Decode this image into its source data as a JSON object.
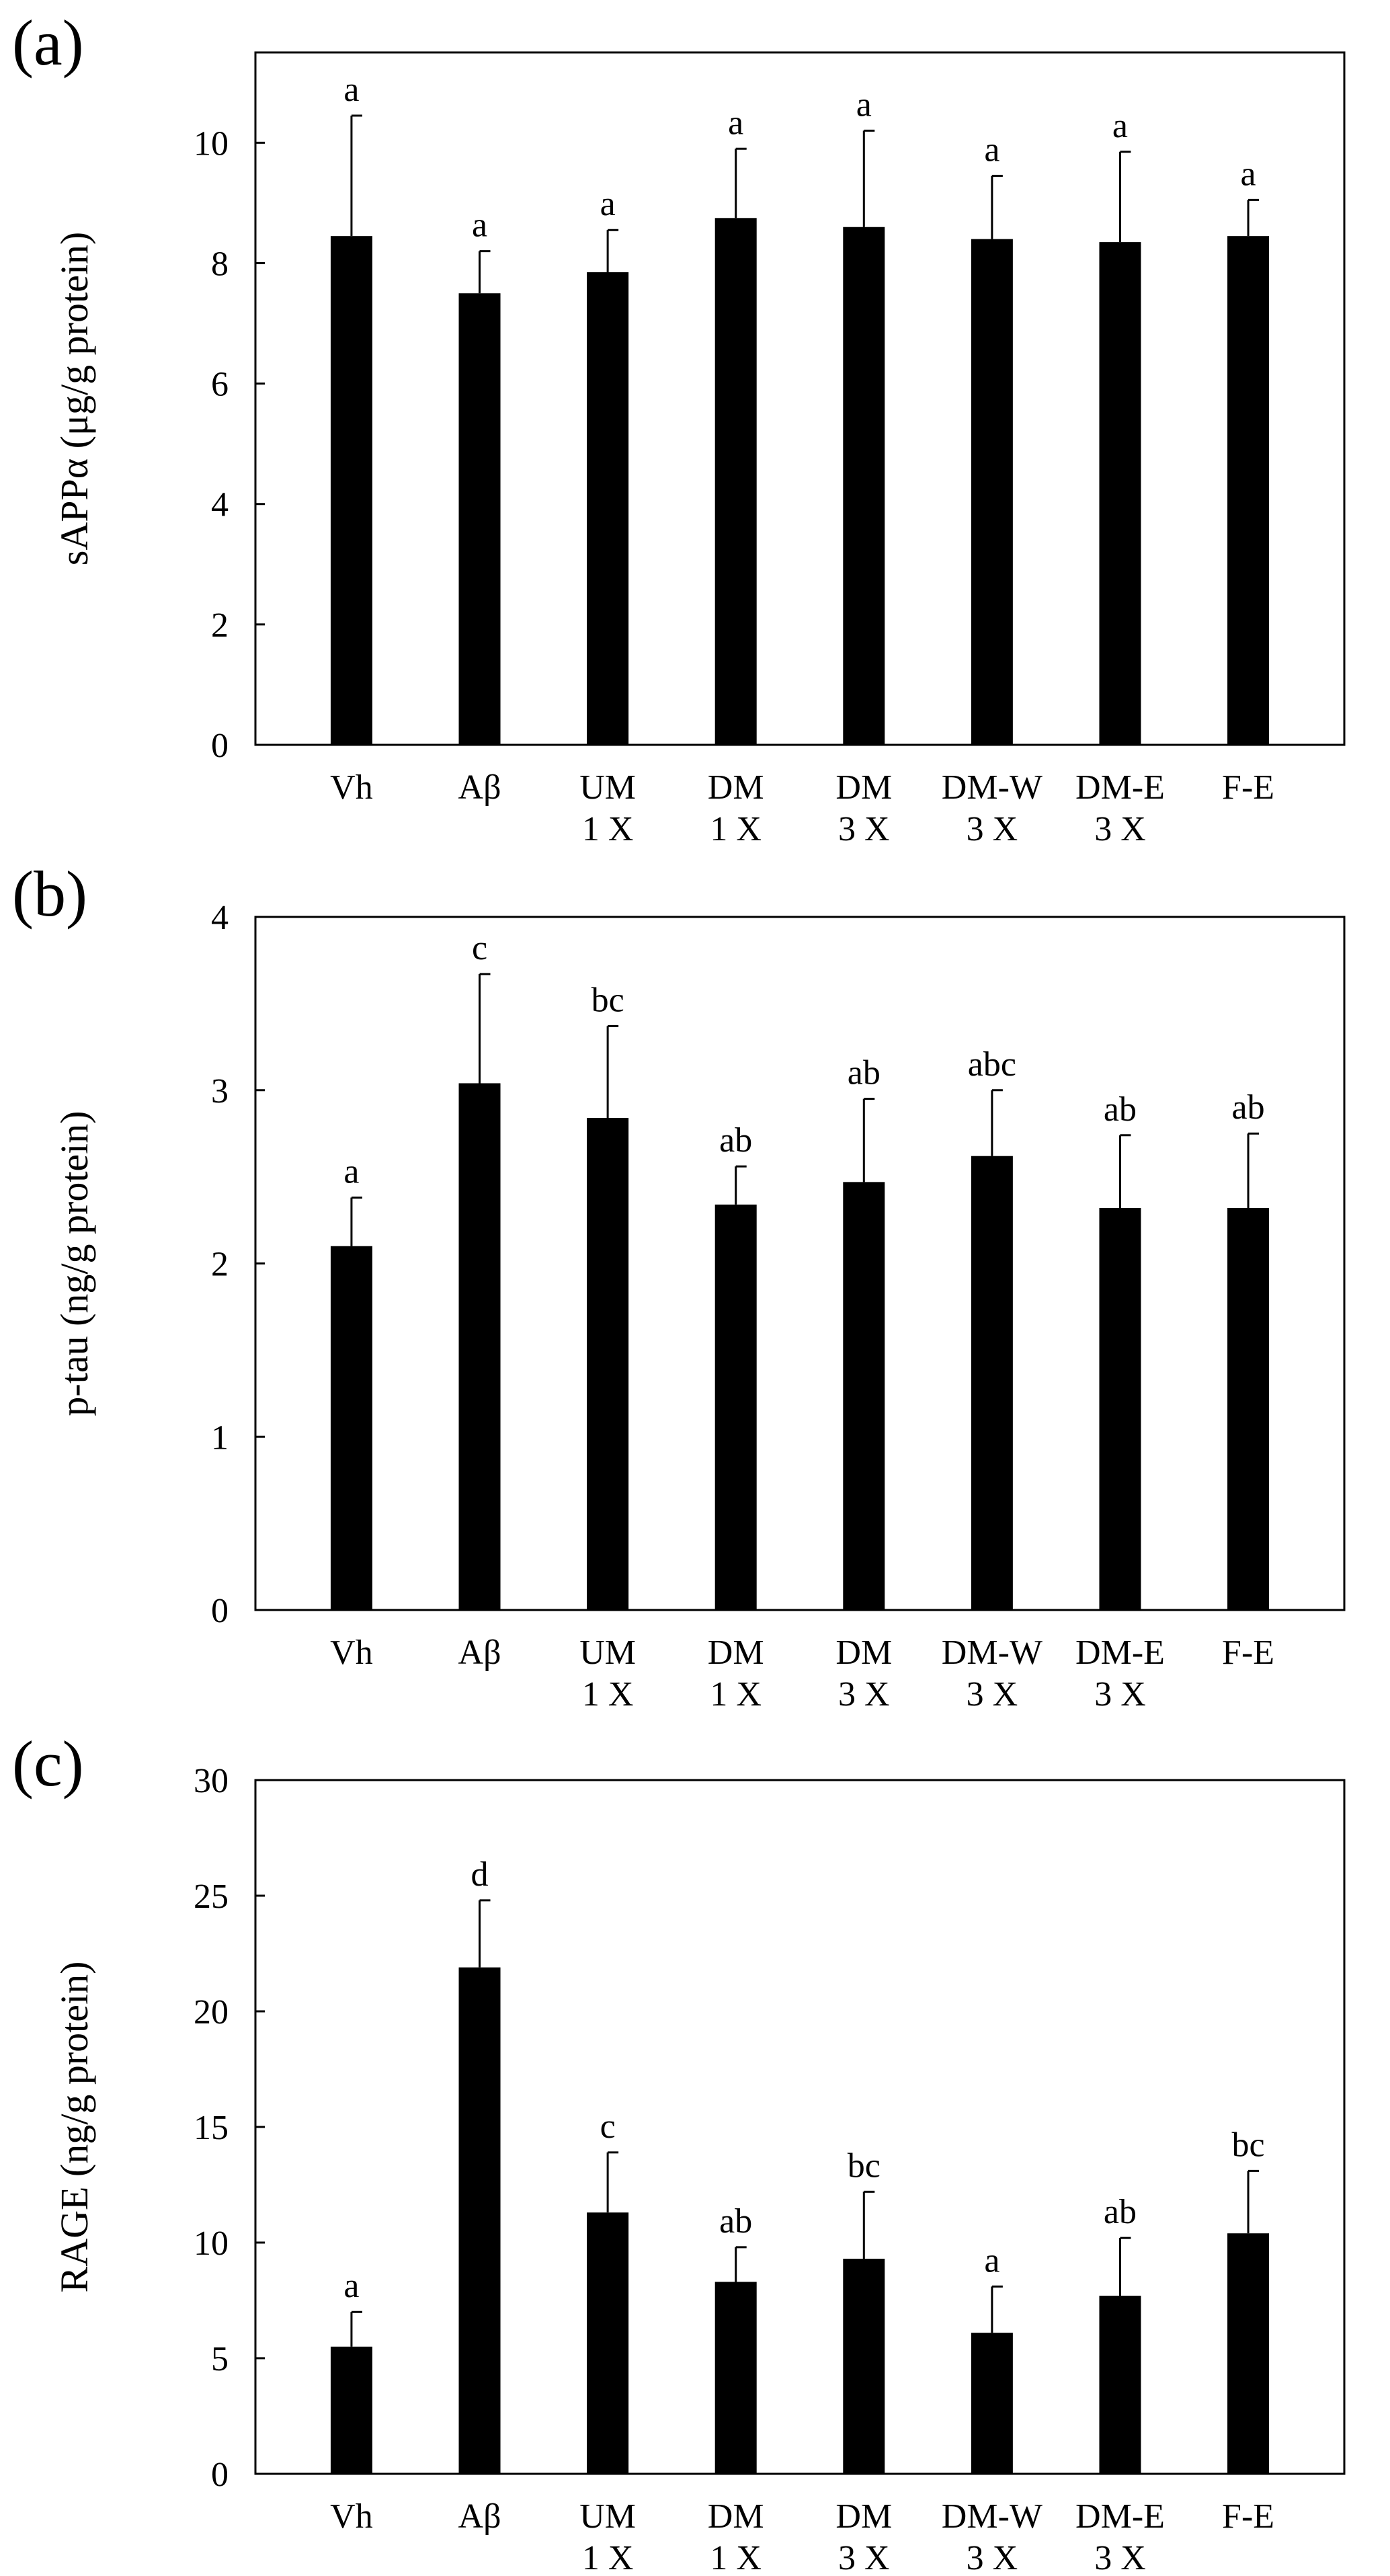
{
  "chart_data": [
    {
      "type": "bar",
      "panel_label": "(a)",
      "ylabel": "sAPPα (μg/g protein)",
      "ylim": [
        0,
        11.5
      ],
      "yticks": [
        0,
        2,
        4,
        6,
        8,
        10
      ],
      "categories": [
        [
          "Vh"
        ],
        [
          "Aβ"
        ],
        [
          "UM",
          "1 X"
        ],
        [
          "DM",
          "1 X"
        ],
        [
          "DM",
          "3 X"
        ],
        [
          "DM-W",
          "3 X"
        ],
        [
          "DM-E",
          "3 X"
        ],
        [
          "F-E"
        ]
      ],
      "values": [
        8.45,
        7.5,
        7.85,
        8.75,
        8.6,
        8.4,
        8.35,
        8.45
      ],
      "errors": [
        2.0,
        0.7,
        0.7,
        1.15,
        1.6,
        1.05,
        1.5,
        0.6
      ],
      "significance": [
        "a",
        "a",
        "a",
        "a",
        "a",
        "a",
        "a",
        "a"
      ]
    },
    {
      "type": "bar",
      "panel_label": "(b)",
      "ylabel": "p-tau (ng/g protein)",
      "ylim": [
        0,
        4
      ],
      "yticks": [
        0,
        1,
        2,
        3,
        4
      ],
      "categories": [
        [
          "Vh"
        ],
        [
          "Aβ"
        ],
        [
          "UM",
          "1 X"
        ],
        [
          "DM",
          "1 X"
        ],
        [
          "DM",
          "3 X"
        ],
        [
          "DM-W",
          "3 X"
        ],
        [
          "DM-E",
          "3 X"
        ],
        [
          "F-E"
        ]
      ],
      "values": [
        2.1,
        3.04,
        2.84,
        2.34,
        2.47,
        2.62,
        2.32,
        2.32
      ],
      "errors": [
        0.28,
        0.63,
        0.53,
        0.22,
        0.48,
        0.38,
        0.42,
        0.43
      ],
      "significance": [
        "a",
        "c",
        "bc",
        "ab",
        "ab",
        "abc",
        "ab",
        "ab"
      ]
    },
    {
      "type": "bar",
      "panel_label": "(c)",
      "ylabel": "RAGE (ng/g protein)",
      "ylim": [
        0,
        30
      ],
      "yticks": [
        0,
        5,
        10,
        15,
        20,
        25,
        30
      ],
      "categories": [
        [
          "Vh"
        ],
        [
          "Aβ"
        ],
        [
          "UM",
          "1 X"
        ],
        [
          "DM",
          "1 X"
        ],
        [
          "DM",
          "3 X"
        ],
        [
          "DM-W",
          "3 X"
        ],
        [
          "DM-E",
          "3 X"
        ],
        [
          "F-E"
        ]
      ],
      "values": [
        5.5,
        21.9,
        11.3,
        8.3,
        9.3,
        6.1,
        7.7,
        10.4
      ],
      "errors": [
        1.5,
        2.9,
        2.6,
        1.5,
        2.9,
        2.0,
        2.5,
        2.7
      ],
      "significance": [
        "a",
        "d",
        "c",
        "ab",
        "bc",
        "a",
        "ab",
        "bc"
      ]
    }
  ]
}
